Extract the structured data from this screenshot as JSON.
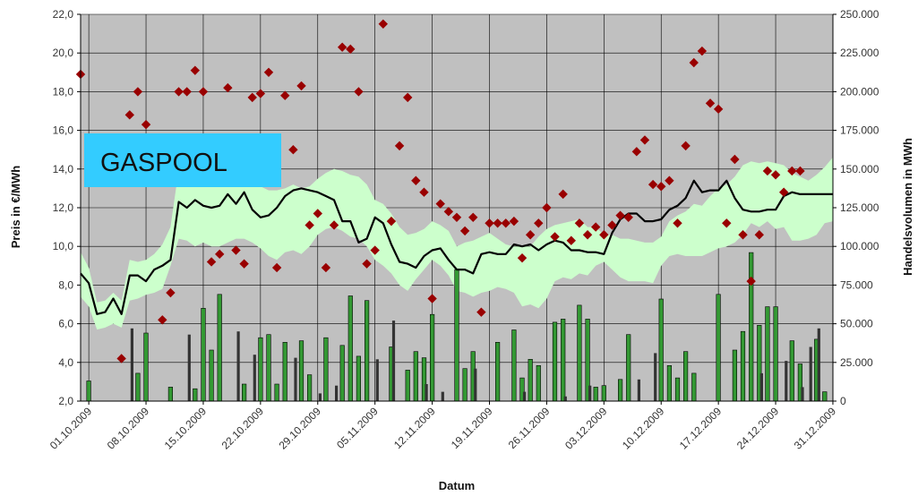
{
  "chart_data": {
    "type": "combo",
    "label_box": {
      "text": "GASPOOL",
      "color": "#33ccff"
    },
    "xlabel": "Datum",
    "ylabel_left": "Preis in €/MWh",
    "ylabel_right": "Handelsvolumen in MWh",
    "ylim_left": [
      2.0,
      22.0
    ],
    "ylim_right": [
      0,
      250000
    ],
    "y_ticks_left": [
      "2,0",
      "4,0",
      "6,0",
      "8,0",
      "10,0",
      "12,0",
      "14,0",
      "16,0",
      "18,0",
      "20,0",
      "22,0"
    ],
    "y_ticks_right": [
      "0",
      "25.000",
      "50.000",
      "75.000",
      "100.000",
      "125.000",
      "150.000",
      "175.000",
      "200.000",
      "225.000",
      "250.000"
    ],
    "x_ticks": [
      "01.10.2009",
      "08.10.2009",
      "15.10.2009",
      "22.10.2009",
      "29.10.2009",
      "05.11.2009",
      "12.11.2009",
      "19.11.2009",
      "26.11.2009",
      "03.12.2009",
      "10.12.2009",
      "17.12.2009",
      "24.12.2009",
      "31.12.2009"
    ],
    "day_range": [
      0,
      92
    ],
    "grid": true,
    "colors": {
      "plot_bg": "#c0c0c0",
      "band": "#ccffcc",
      "line": "#000000",
      "marker": "#990000",
      "bar_green": "#339933",
      "bar_dark": "#333333"
    },
    "series": [
      {
        "name": "band",
        "kind": "band",
        "x": [
          0,
          1,
          2,
          3,
          4,
          5,
          6,
          7,
          8,
          9,
          10,
          11,
          12,
          13,
          14,
          15,
          16,
          17,
          18,
          19,
          20,
          21,
          22,
          23,
          24,
          25,
          26,
          27,
          28,
          29,
          30,
          31,
          32,
          33,
          34,
          35,
          36,
          37,
          38,
          39,
          40,
          41,
          42,
          43,
          44,
          45,
          46,
          47,
          48,
          49,
          50,
          51,
          52,
          53,
          54,
          55,
          56,
          57,
          58,
          59,
          60,
          61,
          62,
          63,
          64,
          65,
          66,
          67,
          68,
          69,
          70,
          71,
          72,
          73,
          74,
          75,
          76,
          77,
          78,
          79,
          80,
          81,
          82,
          83,
          84,
          85,
          86,
          87,
          88,
          89,
          90,
          91,
          92
        ],
        "lower": [
          7.4,
          6.9,
          5.7,
          5.8,
          6.0,
          5.8,
          7.2,
          7.3,
          7.5,
          7.6,
          7.8,
          9.0,
          10.4,
          10.3,
          10.0,
          10.2,
          10.0,
          10.0,
          10.2,
          10.4,
          10.4,
          10.2,
          9.9,
          9.5,
          9.3,
          9.7,
          9.8,
          9.6,
          10.0,
          10.6,
          10.9,
          11.0,
          10.8,
          10.5,
          10.4,
          10.0,
          9.3,
          9.0,
          8.6,
          8.0,
          7.7,
          8.3,
          8.8,
          9.3,
          9.0,
          8.5,
          7.7,
          7.6,
          7.4,
          7.6,
          7.7,
          7.9,
          7.8,
          7.6,
          6.9,
          7.0,
          6.8,
          7.3,
          8.2,
          8.4,
          8.3,
          8.6,
          8.5,
          9.0,
          9.2,
          8.8,
          8.4,
          8.2,
          8.2,
          8.2,
          8.1,
          9.0,
          9.5,
          9.6,
          9.5,
          9.5,
          9.5,
          9.7,
          9.9,
          10.0,
          10.2,
          10.6,
          11.2,
          11.0,
          11.3,
          10.9,
          11.0,
          10.3,
          10.3,
          10.4,
          10.6,
          11.2,
          11.3
        ],
        "upper": [
          9.7,
          8.9,
          7.1,
          7.2,
          7.6,
          7.2,
          9.3,
          9.2,
          9.3,
          9.6,
          10.1,
          11.0,
          14.0,
          13.8,
          13.5,
          13.2,
          13.3,
          13.2,
          13.5,
          13.7,
          13.6,
          13.4,
          13.1,
          12.9,
          12.9,
          13.0,
          13.2,
          13.0,
          13.1,
          13.5,
          13.8,
          14.0,
          13.9,
          13.7,
          13.6,
          13.2,
          12.4,
          12.2,
          11.7,
          11.0,
          10.6,
          10.7,
          10.9,
          11.3,
          11.1,
          10.8,
          10.0,
          10.2,
          10.3,
          10.5,
          10.7,
          10.4,
          10.1,
          10.0,
          10.0,
          10.0,
          10.5,
          10.9,
          11.1,
          11.2,
          11.3,
          11.4,
          11.0,
          11.0,
          10.6,
          10.6,
          10.4,
          10.4,
          10.3,
          10.2,
          10.2,
          10.5,
          11.3,
          11.6,
          11.8,
          12.2,
          12.1,
          12.6,
          13.0,
          13.2,
          13.6,
          14.2,
          14.4,
          14.3,
          14.4,
          14.3,
          14.2,
          13.8,
          13.6,
          13.4,
          13.7,
          14.1,
          14.6
        ]
      },
      {
        "name": "line",
        "kind": "line",
        "x": [
          0,
          1,
          2,
          3,
          4,
          5,
          6,
          7,
          8,
          9,
          10,
          11,
          12,
          13,
          14,
          15,
          16,
          17,
          18,
          19,
          20,
          21,
          22,
          23,
          24,
          25,
          26,
          27,
          28,
          29,
          30,
          31,
          32,
          33,
          34,
          35,
          36,
          37,
          38,
          39,
          40,
          41,
          42,
          43,
          44,
          45,
          46,
          47,
          48,
          49,
          50,
          51,
          52,
          53,
          54,
          55,
          56,
          57,
          58,
          59,
          60,
          61,
          62,
          63,
          64,
          65,
          66,
          67,
          68,
          69,
          70,
          71,
          72,
          73,
          74,
          75,
          76,
          77,
          78,
          79,
          80,
          81,
          82,
          83,
          84,
          85,
          86,
          87,
          88,
          89,
          90,
          91,
          92
        ],
        "values": [
          8.6,
          8.1,
          6.5,
          6.6,
          7.3,
          6.5,
          8.5,
          8.5,
          8.2,
          8.8,
          9.0,
          9.3,
          12.3,
          12.0,
          12.4,
          12.1,
          12.0,
          12.1,
          12.7,
          12.2,
          12.8,
          11.9,
          11.5,
          11.6,
          12.0,
          12.6,
          12.9,
          13.0,
          12.9,
          12.8,
          12.6,
          12.4,
          11.3,
          11.3,
          10.2,
          10.4,
          11.5,
          11.2,
          10.1,
          9.2,
          9.1,
          8.9,
          9.5,
          9.8,
          9.9,
          9.3,
          8.8,
          8.8,
          8.6,
          9.6,
          9.7,
          9.6,
          9.6,
          10.1,
          10.0,
          10.1,
          9.8,
          10.1,
          10.3,
          10.2,
          9.8,
          9.8,
          9.7,
          9.7,
          9.6,
          10.7,
          11.4,
          11.7,
          11.7,
          11.3,
          11.3,
          11.4,
          11.9,
          12.1,
          12.5,
          13.4,
          12.8,
          12.9,
          12.9,
          13.4,
          12.5,
          11.9,
          11.8,
          11.8,
          11.9,
          11.9,
          12.6,
          12.8,
          12.7,
          12.7,
          12.7,
          12.7,
          12.7
        ]
      },
      {
        "name": "markers",
        "kind": "scatter",
        "x": [
          0,
          5,
          6,
          7,
          8,
          10,
          11,
          12,
          13,
          14,
          15,
          16,
          17,
          18,
          19,
          20,
          21,
          22,
          23,
          24,
          25,
          26,
          27,
          28,
          29,
          30,
          31,
          32,
          33,
          34,
          35,
          36,
          37,
          38,
          39,
          40,
          41,
          42,
          43,
          44,
          45,
          46,
          47,
          48,
          49,
          50,
          51,
          52,
          53,
          54,
          55,
          56,
          57,
          58,
          59,
          60,
          61,
          62,
          63,
          64,
          65,
          66,
          67,
          68,
          69,
          70,
          71,
          72,
          73,
          74,
          75,
          76,
          77,
          78,
          79,
          80,
          81,
          82,
          83,
          84,
          85,
          86,
          87,
          88
        ],
        "values": [
          18.9,
          4.2,
          16.8,
          18.0,
          16.3,
          6.2,
          7.6,
          18.0,
          18.0,
          19.1,
          18.0,
          9.2,
          9.6,
          18.2,
          9.8,
          9.1,
          17.7,
          17.9,
          19.0,
          8.9,
          17.8,
          15.0,
          18.3,
          11.1,
          11.7,
          8.9,
          11.1,
          20.3,
          20.2,
          18.0,
          9.1,
          9.8,
          21.5,
          11.3,
          15.2,
          17.7,
          13.4,
          12.8,
          7.3,
          12.2,
          11.8,
          11.5,
          10.8,
          11.5,
          6.6,
          11.2,
          11.2,
          11.2,
          11.3,
          9.4,
          10.6,
          11.2,
          12.0,
          10.5,
          12.7,
          10.3,
          11.2,
          10.6,
          11.0,
          10.6,
          11.1,
          11.6,
          11.5,
          14.9,
          15.5,
          13.2,
          13.1,
          13.4,
          11.2,
          15.2,
          19.5,
          20.1,
          17.4,
          17.1,
          11.2,
          14.5,
          10.6,
          8.2,
          10.6,
          13.9,
          13.7,
          12.8,
          13.9,
          13.9
        ]
      },
      {
        "name": "bars_green",
        "kind": "bar",
        "x": [
          1,
          7,
          8,
          11,
          14,
          15,
          16,
          17,
          20,
          22,
          23,
          24,
          25,
          27,
          28,
          30,
          32,
          33,
          34,
          35,
          38,
          40,
          41,
          42,
          43,
          46,
          47,
          48,
          51,
          53,
          54,
          55,
          56,
          58,
          59,
          61,
          62,
          63,
          64,
          66,
          67,
          71,
          72,
          73,
          74,
          75,
          78,
          80,
          81,
          82,
          83,
          84,
          85,
          87,
          88,
          90,
          91
        ],
        "values": [
          13000,
          18000,
          44000,
          9000,
          8000,
          60000,
          33000,
          69000,
          11000,
          41000,
          43000,
          11000,
          38000,
          39000,
          17000,
          41000,
          36000,
          68000,
          29000,
          65000,
          35000,
          20000,
          32000,
          28000,
          56000,
          85000,
          21000,
          32000,
          38000,
          46000,
          15000,
          27000,
          23000,
          51000,
          53000,
          62000,
          53000,
          9000,
          10000,
          14000,
          43000,
          66000,
          23000,
          15000,
          32000,
          18000,
          69000,
          33000,
          45000,
          96000,
          49000,
          61000,
          61000,
          39000,
          24000,
          40000,
          6000
        ]
      },
      {
        "name": "bars_dark",
        "kind": "bar",
        "x": [
          6,
          13,
          19,
          21,
          26,
          29,
          31,
          36,
          38,
          42,
          44,
          48,
          54,
          59,
          62,
          68,
          70,
          83,
          86,
          88,
          89,
          90
        ],
        "values": [
          47000,
          43000,
          45000,
          30000,
          28000,
          5000,
          10000,
          27000,
          52000,
          11000,
          6000,
          21000,
          6000,
          3000,
          10000,
          14000,
          31000,
          18000,
          26000,
          9000,
          35000,
          47000
        ]
      }
    ]
  }
}
